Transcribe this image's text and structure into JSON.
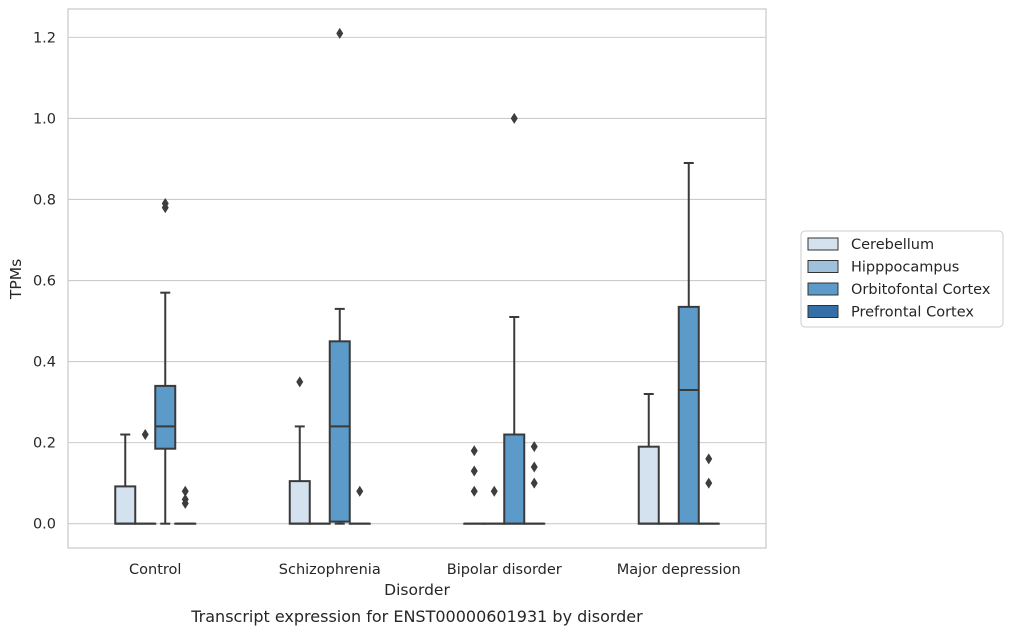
{
  "chart_data": {
    "type": "box",
    "title": "",
    "caption": "Transcript expression for ENST00000601931 by disorder",
    "xlabel": "Disorder",
    "ylabel": "TPMs",
    "ylim": [
      -0.06,
      1.27
    ],
    "y_ticks": [
      "0.0",
      "0.2",
      "0.4",
      "0.6",
      "0.8",
      "1.0",
      "1.2"
    ],
    "y_tick_values": [
      0.0,
      0.2,
      0.4,
      0.6,
      0.8,
      1.0,
      1.2
    ],
    "grid": "horizontal",
    "legend_position": "right",
    "categories": [
      "Control",
      "Schizophrenia",
      "Bipolar disorder",
      "Major depression"
    ],
    "series": [
      {
        "name": "Cerebellum",
        "color": "#d4e2f0",
        "boxes": [
          {
            "q1": 0.0,
            "median": 0.0,
            "q3": 0.092,
            "whisker_low": 0.0,
            "whisker_high": 0.22,
            "outliers": []
          },
          {
            "q1": 0.0,
            "median": 0.0,
            "q3": 0.105,
            "whisker_low": 0.0,
            "whisker_high": 0.24,
            "outliers": [
              0.35
            ]
          },
          {
            "q1": 0.0,
            "median": 0.0,
            "q3": 0.0,
            "whisker_low": 0.0,
            "whisker_high": 0.0,
            "outliers": [
              0.18,
              0.13,
              0.08
            ]
          },
          {
            "q1": 0.0,
            "median": 0.0,
            "q3": 0.19,
            "whisker_low": 0.0,
            "whisker_high": 0.32,
            "outliers": []
          }
        ]
      },
      {
        "name": "Hipppocampus",
        "color": "#9ec2dd",
        "boxes": [
          {
            "q1": 0.0,
            "median": 0.0,
            "q3": 0.0,
            "whisker_low": 0.0,
            "whisker_high": 0.0,
            "outliers": [
              0.22
            ]
          },
          {
            "q1": 0.0,
            "median": 0.0,
            "q3": 0.0,
            "whisker_low": 0.0,
            "whisker_high": 0.0,
            "outliers": []
          },
          {
            "q1": 0.0,
            "median": 0.0,
            "q3": 0.0,
            "whisker_low": 0.0,
            "whisker_high": 0.0,
            "outliers": [
              0.08
            ]
          },
          {
            "q1": 0.0,
            "median": 0.0,
            "q3": 0.0,
            "whisker_low": 0.0,
            "whisker_high": 0.0,
            "outliers": []
          }
        ]
      },
      {
        "name": "Orbitofontal Cortex",
        "color": "#5b9ac9",
        "boxes": [
          {
            "q1": 0.185,
            "median": 0.24,
            "q3": 0.34,
            "whisker_low": 0.0,
            "whisker_high": 0.57,
            "outliers": [
              0.78,
              0.79
            ]
          },
          {
            "q1": 0.005,
            "median": 0.24,
            "q3": 0.45,
            "whisker_low": 0.0,
            "whisker_high": 0.53,
            "outliers": [
              1.21
            ]
          },
          {
            "q1": 0.0,
            "median": 0.0,
            "q3": 0.22,
            "whisker_low": 0.0,
            "whisker_high": 0.51,
            "outliers": [
              1.0
            ]
          },
          {
            "q1": 0.0,
            "median": 0.33,
            "q3": 0.535,
            "whisker_low": 0.0,
            "whisker_high": 0.89,
            "outliers": []
          }
        ]
      },
      {
        "name": "Prefrontal Cortex",
        "color": "#3470a7",
        "boxes": [
          {
            "q1": 0.0,
            "median": 0.0,
            "q3": 0.0,
            "whisker_low": 0.0,
            "whisker_high": 0.0,
            "outliers": [
              0.08,
              0.06,
              0.05
            ]
          },
          {
            "q1": 0.0,
            "median": 0.0,
            "q3": 0.0,
            "whisker_low": 0.0,
            "whisker_high": 0.0,
            "outliers": [
              0.08
            ]
          },
          {
            "q1": 0.0,
            "median": 0.0,
            "q3": 0.0,
            "whisker_low": 0.0,
            "whisker_high": 0.0,
            "outliers": [
              0.19,
              0.14,
              0.1
            ]
          },
          {
            "q1": 0.0,
            "median": 0.0,
            "q3": 0.0,
            "whisker_low": 0.0,
            "whisker_high": 0.0,
            "outliers": [
              0.16,
              0.1
            ]
          }
        ]
      }
    ]
  },
  "colors": {
    "edge": "#3a3a3a",
    "grid": "#cccccc",
    "frame": "#cccccc"
  }
}
